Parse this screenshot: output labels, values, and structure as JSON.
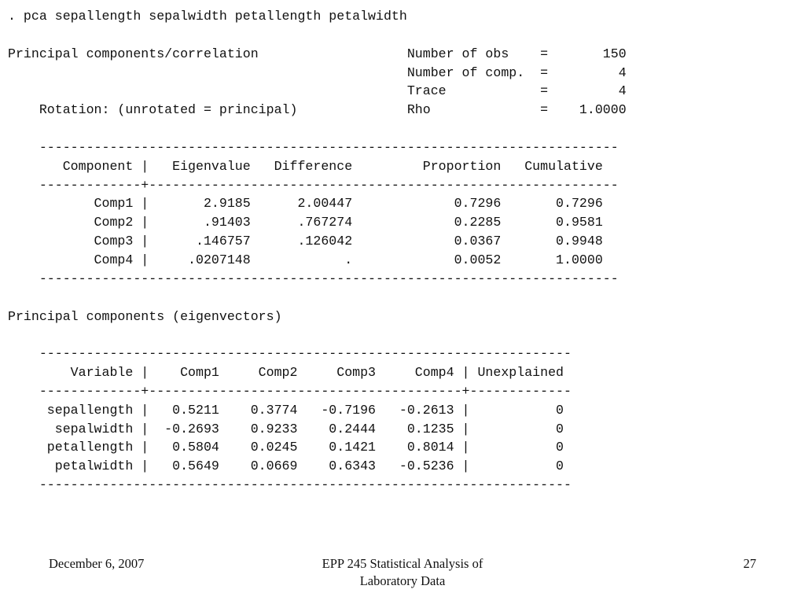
{
  "output_lines": [
    ". pca sepallength sepalwidth petallength petalwidth",
    "",
    "Principal components/correlation                   Number of obs    =       150",
    "                                                   Number of comp.  =         4",
    "                                                   Trace            =         4",
    "    Rotation: (unrotated = principal)              Rho              =    1.0000",
    "",
    "    --------------------------------------------------------------------------",
    "       Component |   Eigenvalue   Difference         Proportion   Cumulative",
    "    -------------+------------------------------------------------------------",
    "           Comp1 |       2.9185      2.00447             0.7296       0.7296",
    "           Comp2 |       .91403      .767274             0.2285       0.9581",
    "           Comp3 |      .146757      .126042             0.0367       0.9948",
    "           Comp4 |     .0207148            .             0.0052       1.0000",
    "    --------------------------------------------------------------------------",
    "",
    "Principal components (eigenvectors)",
    "",
    "    --------------------------------------------------------------------",
    "        Variable |    Comp1     Comp2     Comp3     Comp4 | Unexplained",
    "    -------------+----------------------------------------+-------------",
    "     sepallength |   0.5211    0.3774   -0.7196   -0.2613 |           0",
    "      sepalwidth |  -0.2693    0.9233    0.2444    0.1235 |           0",
    "     petallength |   0.5804    0.0245    0.1421    0.8014 |           0",
    "      petalwidth |   0.5649    0.0669    0.6343   -0.5236 |           0",
    "    --------------------------------------------------------------------"
  ],
  "footer": {
    "date": "December 6, 2007",
    "course_line1": "EPP 245 Statistical Analysis of",
    "course_line2": "Laboratory Data",
    "page_number": "27"
  }
}
